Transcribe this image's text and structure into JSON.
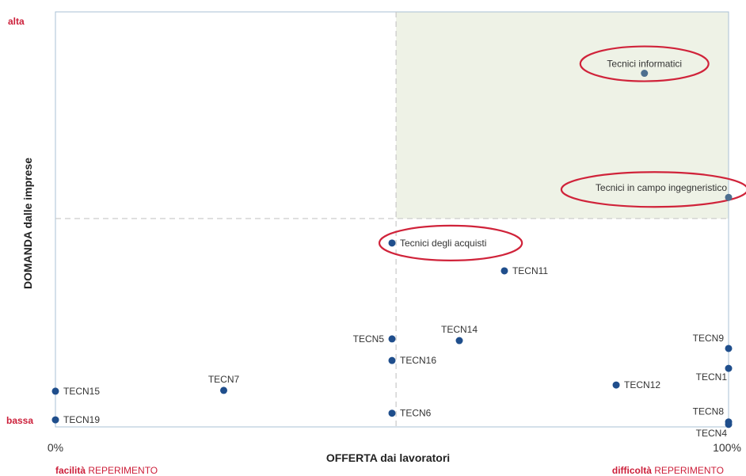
{
  "chart_data": {
    "type": "scatter",
    "xlabel": "OFFERTA dai lavoratori",
    "ylabel": "DOMANDA dalle imprese",
    "xlim": [
      0,
      100
    ],
    "ylim": [
      0,
      100
    ],
    "x_tick_left": "0%",
    "x_tick_right": "100%",
    "y_tick_top": "alta",
    "y_tick_bottom": "bassa",
    "x_sub_left": {
      "bold": "facilità",
      "rest": " REPERIMENTO"
    },
    "x_sub_right": {
      "bold": "difficoltà",
      "rest": " REPERIMENTO"
    },
    "quadrant_split": {
      "x": 50.6,
      "y": 50.2
    },
    "highlight_quadrant": "top-right",
    "colors": {
      "point": "#1f4e8c",
      "point_highlight": "#4d6f8f",
      "ellipse": "#d0233a",
      "quadrant_fill": "#eef2e6",
      "axis_red": "#cc1f3a",
      "frame": "#a9c0d4",
      "divider": "#c8c8c8"
    },
    "points": [
      {
        "label": "Tecnici informatici",
        "x": 87.5,
        "y": 85.2,
        "highlight": true,
        "label_pos": "top"
      },
      {
        "label": "Tecnici in campo ingegneristico",
        "x": 100,
        "y": 55.3,
        "highlight": true,
        "label_pos": "top-left"
      },
      {
        "label": "Tecnici degli acquisti",
        "x": 50.0,
        "y": 44.3,
        "highlight": true,
        "label_pos": "right"
      },
      {
        "label": "TECN11",
        "x": 66.7,
        "y": 37.6,
        "label_pos": "right"
      },
      {
        "label": "TECN14",
        "x": 60.0,
        "y": 20.8,
        "label_pos": "top"
      },
      {
        "label": "TECN5",
        "x": 50.0,
        "y": 21.2,
        "label_pos": "left"
      },
      {
        "label": "TECN16",
        "x": 50.0,
        "y": 16.0,
        "label_pos": "right"
      },
      {
        "label": "TECN9",
        "x": 100,
        "y": 18.9,
        "label_pos": "top-left"
      },
      {
        "label": "TECN1",
        "x": 100,
        "y": 14.1,
        "label_pos": "bottom-left"
      },
      {
        "label": "TECN12",
        "x": 83.3,
        "y": 10.1,
        "label_pos": "right"
      },
      {
        "label": "TECN7",
        "x": 25.0,
        "y": 8.8,
        "label_pos": "top"
      },
      {
        "label": "TECN15",
        "x": 0,
        "y": 8.6,
        "label_pos": "right"
      },
      {
        "label": "TECN6",
        "x": 50.0,
        "y": 3.3,
        "label_pos": "right"
      },
      {
        "label": "TECN19",
        "x": 0,
        "y": 1.7,
        "label_pos": "right"
      },
      {
        "label": "TECN8",
        "x": 100,
        "y": 1.2,
        "label_pos": "top-left"
      },
      {
        "label": "TECN4",
        "x": 100,
        "y": 0.6,
        "label_pos": "bottom-left"
      }
    ]
  }
}
